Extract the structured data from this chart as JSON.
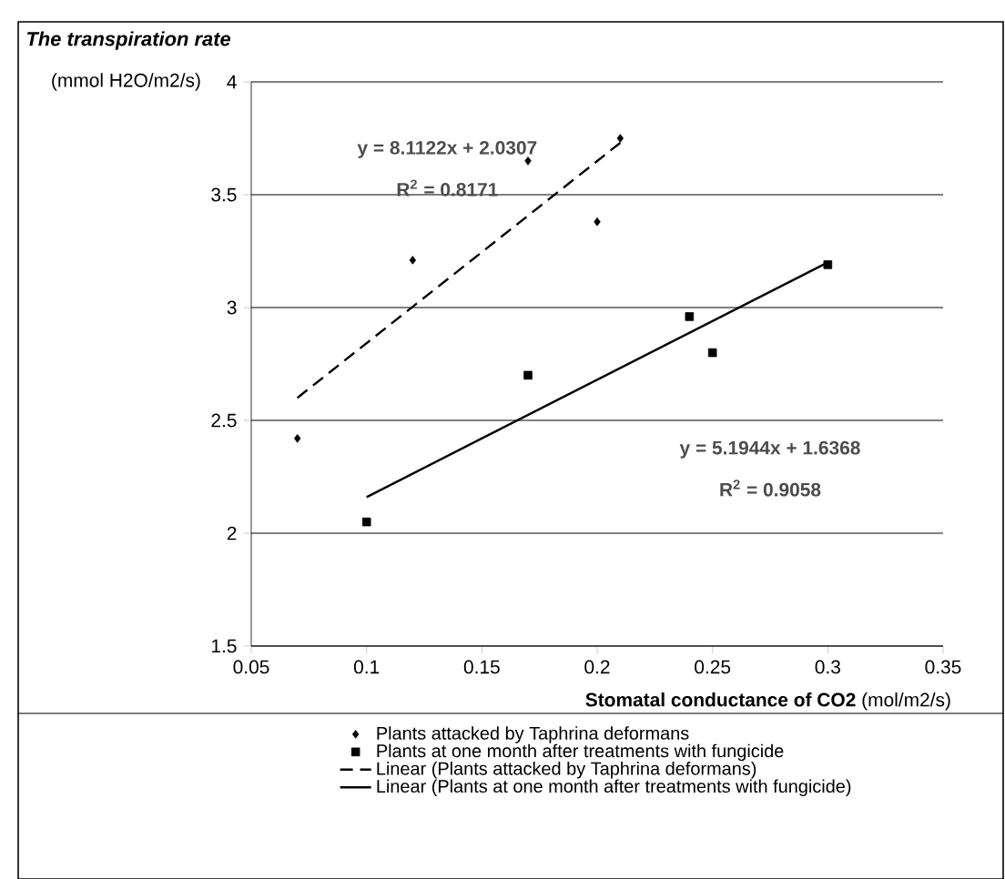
{
  "chart_data": {
    "type": "scatter",
    "title": "The transpiration rate",
    "ylabel": "(mmol H2O/m2/s)",
    "xlabel": "**Stomatal conductance of CO2** (mol/m2/s)",
    "xlim": [
      0.05,
      0.35
    ],
    "xticks": [
      0.05,
      0.1,
      0.15,
      0.2,
      0.25,
      0.3,
      0.35
    ],
    "ylim": [
      1.5,
      4
    ],
    "yticks": [
      1.5,
      2,
      2.5,
      3,
      3.5,
      4
    ],
    "grid": "y",
    "legend": "bottom",
    "series": [
      {
        "name": "Plants attacked by Taphrina deformans",
        "marker": "diamond",
        "color": "#000000",
        "x": [
          0.07,
          0.12,
          0.17,
          0.2,
          0.21
        ],
        "values": [
          2.42,
          3.21,
          3.65,
          3.38,
          3.75
        ]
      },
      {
        "name": "Plants at one month after treatments with fungicide",
        "marker": "square",
        "color": "#000000",
        "x": [
          0.1,
          0.17,
          0.24,
          0.25,
          0.3
        ],
        "values": [
          2.05,
          2.7,
          2.96,
          2.8,
          3.19
        ]
      },
      {
        "name": "Linear (Plants attacked by Taphrina deformans)",
        "type": "line",
        "line_style": "dashed",
        "color": "#000000",
        "x": [
          0.07,
          0.21
        ],
        "values": [
          2.6,
          3.73
        ]
      },
      {
        "name": "Linear (Plants at one month after treatments with fungicide)",
        "type": "line",
        "line_style": "solid",
        "color": "#000000",
        "x": [
          0.1,
          0.3
        ],
        "values": [
          2.16,
          3.2
        ]
      }
    ],
    "annotations": [
      "y = 8.1122x + 2.0307",
      "R$^{2}$ = 0.8171",
      "y = 5.1944x + 1.6368",
      "R$^{2}$ = 0.9058"
    ]
  }
}
